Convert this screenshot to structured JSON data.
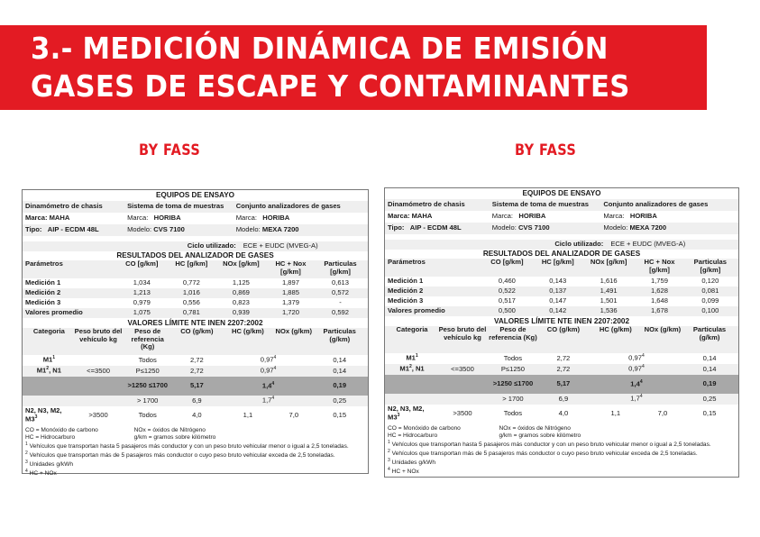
{
  "banner": {
    "line1": "3.- MEDICIÓN DINÁMICA DE EMISIÓN",
    "line2": "GASES DE ESCAPE Y CONTAMINANTES",
    "color": "#e31b23"
  },
  "bylines": {
    "left": "BY FASS",
    "right": "BY FASS"
  },
  "common": {
    "equipos_title": "EQUIPOS DE ENSAYO",
    "equipos_headers": [
      "Dinamómetro de chasis",
      "Sistema de toma de muestras",
      "Conjunto analizadores de gases"
    ],
    "marca": {
      "label": "Marca:",
      "values": [
        "MAHA",
        "HORIBA",
        "HORIBA"
      ]
    },
    "tipo": {
      "labels": [
        "Tipo:",
        "Modelo:",
        "Modelo:"
      ],
      "values": [
        "AIP - ECDM 48L",
        "CVS 7100",
        "MEXA 7200"
      ]
    },
    "ciclo_label": "Ciclo utilizado:",
    "ciclo_value": "ECE + EUDC (MVEG-A)",
    "resultados_title": "RESULTADOS DEL ANALIZADOR DE GASES",
    "res_headers": [
      "Parámetros",
      "CO [g/km]",
      "HC [g/km]",
      "NOx [g/km]",
      "HC + Nox [g/km]",
      "Particulas [g/km]"
    ],
    "limites_title": "VALORES LÍMITE NTE INEN 2207:2002",
    "lim_headers": [
      "Categoria",
      "Peso bruto del vehículo kg",
      "Peso de referencia (Kg)",
      "CO (g/km)",
      "HC (g/km)",
      "NOx (g/km)",
      "Particulas (g/km)"
    ],
    "lim_rows": [
      {
        "cat": "M1",
        "cat_sup": "1",
        "peso": "",
        "ref": "Todos",
        "co": "2,72",
        "hcnox": "0,97",
        "hcnox_sup": "4",
        "part": "0,14"
      },
      {
        "cat": "M1",
        "cat_sup": "2",
        "cat_suffix": ", N1",
        "peso": "<=3500",
        "ref": "P≤1250",
        "co": "2,72",
        "hcnox": "0,97",
        "hcnox_sup": "4",
        "part": "0,14"
      },
      {
        "cat": "",
        "peso": "",
        "ref": ">1250 ≤1700",
        "co": "5,17",
        "hcnox": "1,4",
        "hcnox_sup": "4",
        "part": "0,19",
        "dark": true
      },
      {
        "cat": "",
        "peso": "",
        "ref": "> 1700",
        "co": "6,9",
        "hcnox": "1,7",
        "hcnox_sup": "4",
        "part": "0,25"
      },
      {
        "cat": "N2, N3, M2, M3",
        "cat_sup": "3",
        "peso": ">3500",
        "ref": "Todos",
        "co": "4,0",
        "hc": "1,1",
        "nox": "7,0",
        "part": "0,15"
      }
    ],
    "notes": {
      "co": "CO = Monóxido de carbono",
      "nox": "NOx = óxidos de Nitrógeno",
      "hc": "HC = Hidrocarburo",
      "gkm": "g/km = gramos sobre kilómetro",
      "n1": "Vehículos que transportan hasta 5 pasajeros más conductor y con un peso bruto vehicular menor o igual a 2,5 toneladas.",
      "n2": "Vehículos que transportan más de 5 pasajeros más conductor o cuyo peso bruto vehicular exceda de 2,5 toneladas.",
      "n3": "Unidades g/kWh",
      "n4": "HC + NOx"
    }
  },
  "left_results": [
    {
      "label": "Medición 1",
      "co": "1,034",
      "hc": "0,772",
      "nox": "1,125",
      "hcnox": "1,897",
      "part": "0,613"
    },
    {
      "label": "Medición 2",
      "co": "1,213",
      "hc": "1,016",
      "nox": "0,869",
      "hcnox": "1,885",
      "part": "0,572"
    },
    {
      "label": "Medición 3",
      "co": "0,979",
      "hc": "0,556",
      "nox": "0,823",
      "hcnox": "1,379",
      "part": "-"
    },
    {
      "label": "Valores promedio",
      "co": "1,075",
      "hc": "0,781",
      "nox": "0,939",
      "hcnox": "1,720",
      "part": "0,592"
    }
  ],
  "right_results": [
    {
      "label": "Medición 1",
      "co": "0,460",
      "hc": "0,143",
      "nox": "1,616",
      "hcnox": "1,759",
      "part": "0,120"
    },
    {
      "label": "Medición 2",
      "co": "0,522",
      "hc": "0,137",
      "nox": "1,491",
      "hcnox": "1,628",
      "part": "0,081"
    },
    {
      "label": "Medición 3",
      "co": "0,517",
      "hc": "0,147",
      "nox": "1,501",
      "hcnox": "1,648",
      "part": "0,099"
    },
    {
      "label": "Valores promedio",
      "co": "0,500",
      "hc": "0,142",
      "nox": "1,536",
      "hcnox": "1,678",
      "part": "0,100"
    }
  ]
}
